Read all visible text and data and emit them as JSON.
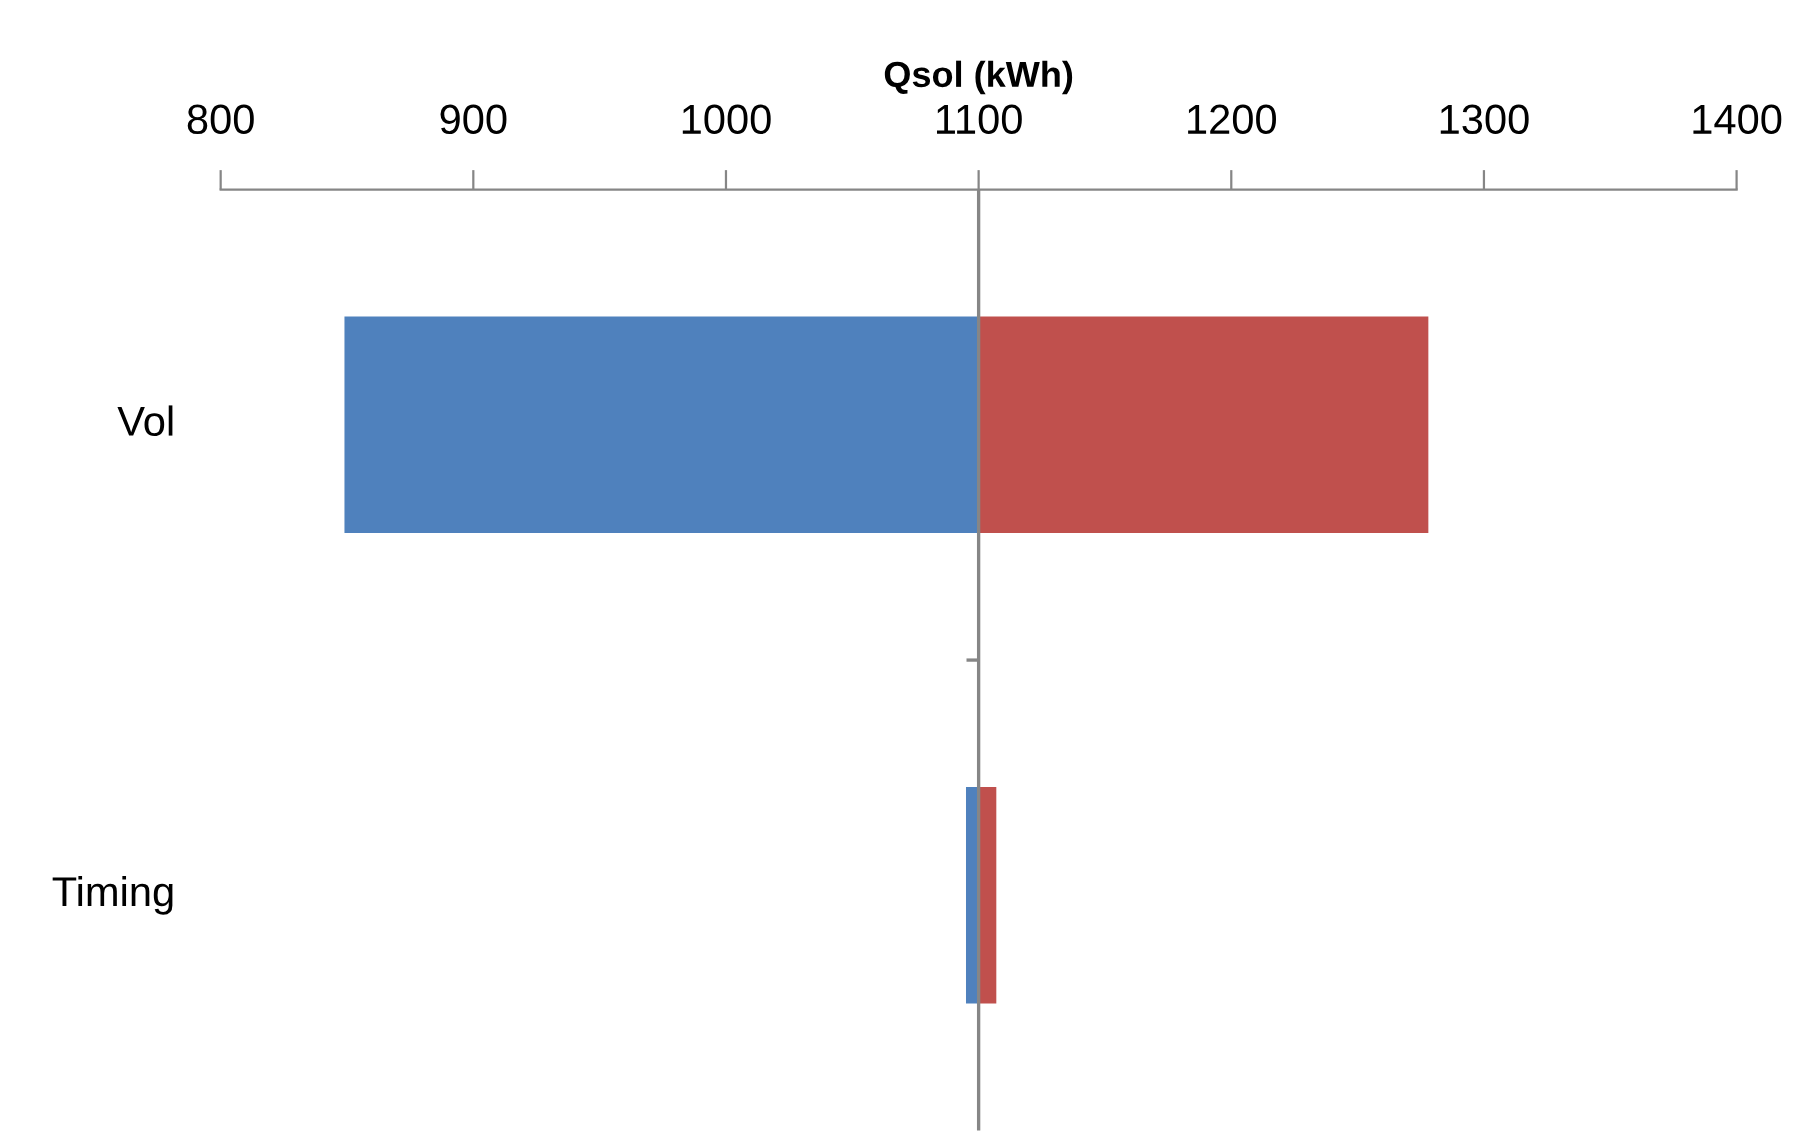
{
  "chart_data": {
    "type": "bar",
    "orientation": "horizontal",
    "xlabel": "Qsol (kWh)",
    "categories": [
      "Vol",
      "Timing"
    ],
    "series": [
      {
        "color": "#4f81bd",
        "base": [
          849,
          1095
        ],
        "values": [
          251,
          5
        ]
      },
      {
        "color": "#c0504d",
        "base": [
          1100,
          1100
        ],
        "values": [
          178,
          7
        ]
      }
    ],
    "xlim": [
      800,
      1400
    ],
    "xticks": [
      800,
      900,
      1000,
      1100,
      1200,
      1300,
      1400
    ],
    "ref_lines": [
      {
        "axis": "x",
        "value": 1100,
        "color": "#868686"
      }
    ],
    "grid": false,
    "legend": false
  }
}
